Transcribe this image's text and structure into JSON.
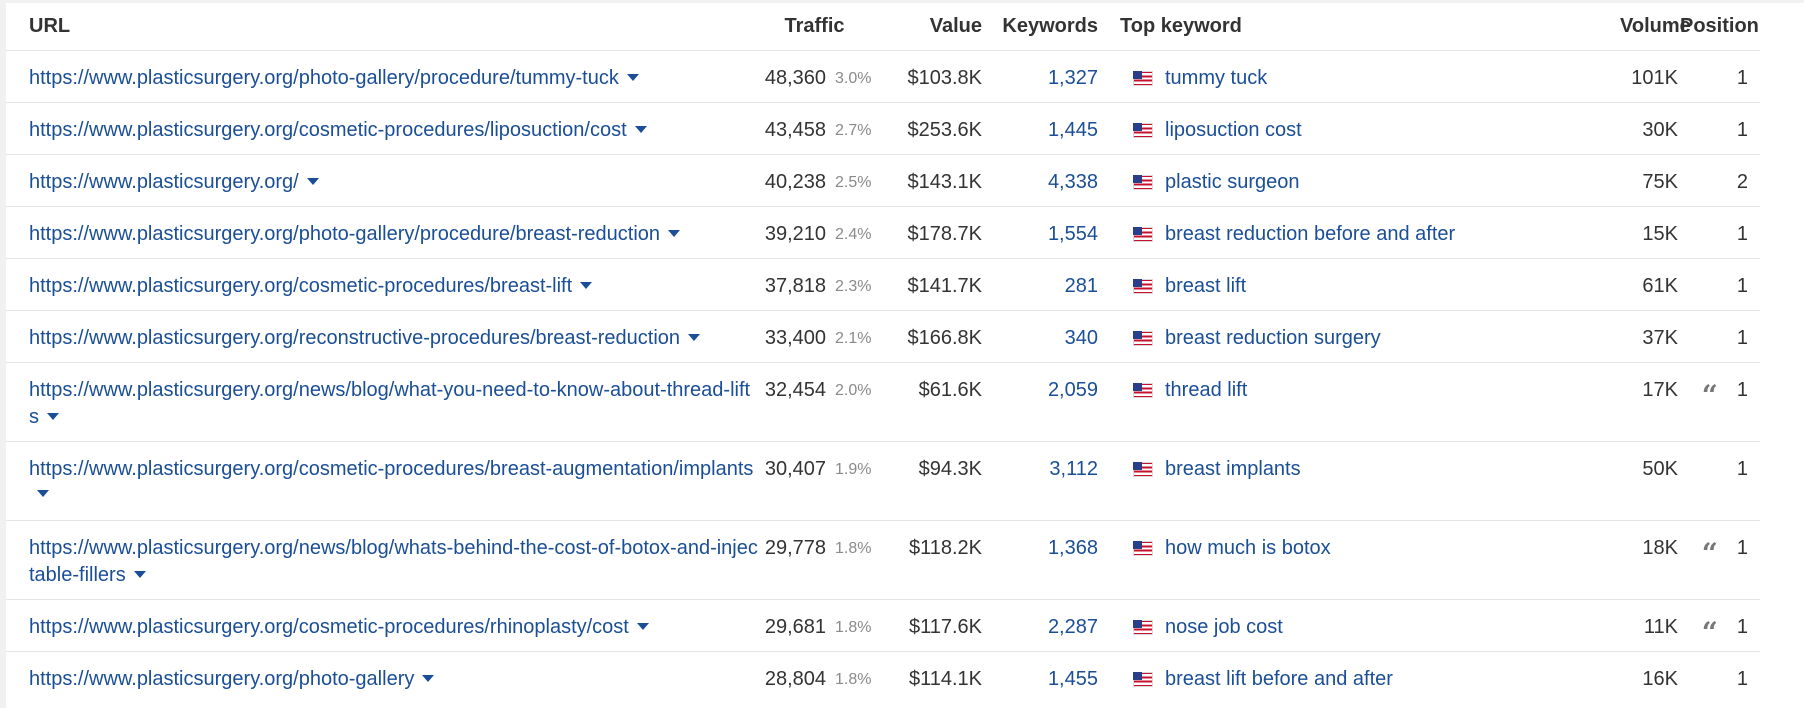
{
  "columns": {
    "url": "URL",
    "traffic": "Traffic",
    "value": "Value",
    "keywords": "Keywords",
    "top_keyword": "Top keyword",
    "volume": "Volume",
    "position": "Position"
  },
  "icons": {
    "flag": "us-flag-icon",
    "dropdown": "caret-down-icon",
    "serp_feature": "quote-icon"
  },
  "colors": {
    "link": "#1a4e96",
    "text": "#333333",
    "muted": "#8a8a8a",
    "divider": "#e4e4e4"
  },
  "rows": [
    {
      "url": "https://www.plasticsurgery.org/photo-gallery/procedure/tummy-tuck",
      "traffic": "48,360",
      "share": "3.0%",
      "value": "$103.8K",
      "keywords": "1,327",
      "top_keyword": "tummy tuck",
      "volume": "101K",
      "position": "1",
      "quote": false
    },
    {
      "url": "https://www.plasticsurgery.org/cosmetic-procedures/liposuction/cost",
      "traffic": "43,458",
      "share": "2.7%",
      "value": "$253.6K",
      "keywords": "1,445",
      "top_keyword": "liposuction cost",
      "volume": "30K",
      "position": "1",
      "quote": false
    },
    {
      "url": "https://www.plasticsurgery.org/",
      "traffic": "40,238",
      "share": "2.5%",
      "value": "$143.1K",
      "keywords": "4,338",
      "top_keyword": "plastic surgeon",
      "volume": "75K",
      "position": "2",
      "quote": false
    },
    {
      "url": "https://www.plasticsurgery.org/photo-gallery/procedure/breast-reduction",
      "traffic": "39,210",
      "share": "2.4%",
      "value": "$178.7K",
      "keywords": "1,554",
      "top_keyword": "breast reduction before and after",
      "volume": "15K",
      "position": "1",
      "quote": false
    },
    {
      "url": "https://www.plasticsurgery.org/cosmetic-procedures/breast-lift",
      "traffic": "37,818",
      "share": "2.3%",
      "value": "$141.7K",
      "keywords": "281",
      "top_keyword": "breast lift",
      "volume": "61K",
      "position": "1",
      "quote": false
    },
    {
      "url": "https://www.plasticsurgery.org/reconstructive-procedures/breast-reduction",
      "traffic": "33,400",
      "share": "2.1%",
      "value": "$166.8K",
      "keywords": "340",
      "top_keyword": "breast reduction surgery",
      "volume": "37K",
      "position": "1",
      "quote": false
    },
    {
      "url": "https://www.plasticsurgery.org/news/blog/what-you-need-to-know-about-thread-lifts",
      "traffic": "32,454",
      "share": "2.0%",
      "value": "$61.6K",
      "keywords": "2,059",
      "top_keyword": "thread lift",
      "volume": "17K",
      "position": "1",
      "quote": true
    },
    {
      "url": "https://www.plasticsurgery.org/cosmetic-procedures/breast-augmentation/implants",
      "traffic": "30,407",
      "share": "1.9%",
      "value": "$94.3K",
      "keywords": "3,112",
      "top_keyword": "breast implants",
      "volume": "50K",
      "position": "1",
      "quote": false
    },
    {
      "url": "https://www.plasticsurgery.org/news/blog/whats-behind-the-cost-of-botox-and-injectable-fillers",
      "traffic": "29,778",
      "share": "1.8%",
      "value": "$118.2K",
      "keywords": "1,368",
      "top_keyword": "how much is botox",
      "volume": "18K",
      "position": "1",
      "quote": true
    },
    {
      "url": "https://www.plasticsurgery.org/cosmetic-procedures/rhinoplasty/cost",
      "traffic": "29,681",
      "share": "1.8%",
      "value": "$117.6K",
      "keywords": "2,287",
      "top_keyword": "nose job cost",
      "volume": "11K",
      "position": "1",
      "quote": true
    },
    {
      "url": "https://www.plasticsurgery.org/photo-gallery",
      "traffic": "28,804",
      "share": "1.8%",
      "value": "$114.1K",
      "keywords": "1,455",
      "top_keyword": "breast lift before and after",
      "volume": "16K",
      "position": "1",
      "quote": false
    }
  ]
}
